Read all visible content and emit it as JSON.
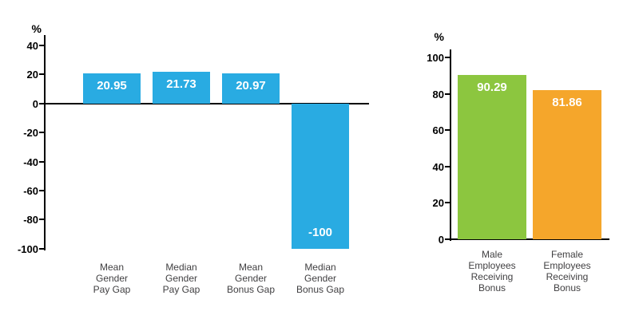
{
  "chart_data": [
    {
      "type": "bar",
      "title": "",
      "xlabel": "",
      "ylabel": "%",
      "ylim": [
        -100,
        40
      ],
      "yticks": [
        40,
        20,
        0,
        -20,
        -40,
        -60,
        -80,
        -100
      ],
      "grid": false,
      "legend": "none",
      "categories": [
        [
          "Mean",
          "Gender",
          "Pay Gap"
        ],
        [
          "Median",
          "Gender",
          "Pay Gap"
        ],
        [
          "Mean",
          "Gender",
          "Bonus Gap"
        ],
        [
          "Median",
          "Gender",
          "Bonus Gap"
        ]
      ],
      "values": [
        20.95,
        21.73,
        20.97,
        -100
      ],
      "value_labels": [
        "20.95",
        "21.73",
        "20.97",
        "-100"
      ],
      "bar_colors": [
        "#29abe2",
        "#29abe2",
        "#29abe2",
        "#29abe2"
      ],
      "value_label_color": "#ffffff"
    },
    {
      "type": "bar",
      "title": "",
      "xlabel": "",
      "ylabel": "%",
      "ylim": [
        0,
        100
      ],
      "yticks": [
        100,
        80,
        60,
        40,
        20,
        0
      ],
      "grid": false,
      "legend": "none",
      "categories": [
        [
          "Male",
          "Employees",
          "Receiving",
          "Bonus"
        ],
        [
          "Female",
          "Employees",
          "Receiving",
          "Bonus"
        ]
      ],
      "values": [
        90.29,
        81.86
      ],
      "value_labels": [
        "90.29",
        "81.86"
      ],
      "bar_colors": [
        "#8cc63f",
        "#f5a62b"
      ],
      "value_label_color": "#ffffff"
    }
  ]
}
